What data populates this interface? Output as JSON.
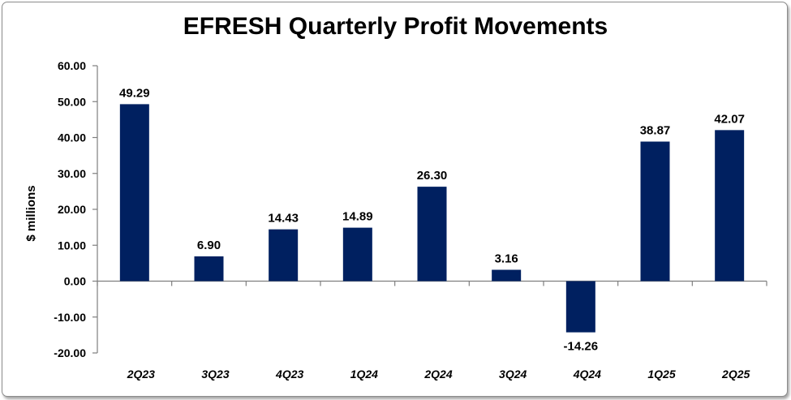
{
  "chart_data": {
    "type": "bar",
    "title": "EFRESH Quarterly Profit Movements",
    "xlabel": "",
    "ylabel": "$ millions",
    "categories": [
      "2Q23",
      "3Q23",
      "4Q23",
      "1Q24",
      "2Q24",
      "3Q24",
      "4Q24",
      "1Q25",
      "2Q25"
    ],
    "values": [
      49.29,
      6.9,
      14.43,
      14.89,
      26.3,
      3.16,
      -14.26,
      38.87,
      42.07
    ],
    "value_labels": [
      "49.29",
      "6.90",
      "14.43",
      "14.89",
      "26.30",
      "3.16",
      "-14.26",
      "38.87",
      "42.07"
    ],
    "ylim": [
      -20,
      60
    ],
    "yticks": [
      60,
      50,
      40,
      30,
      20,
      10,
      0,
      -10,
      -20
    ],
    "ytick_labels": [
      "60.00",
      "50.00",
      "40.00",
      "30.00",
      "20.00",
      "10.00",
      "0.00",
      "-10.00",
      "-20.00"
    ],
    "bar_color": "#002060",
    "grid": false,
    "legend": "none"
  }
}
